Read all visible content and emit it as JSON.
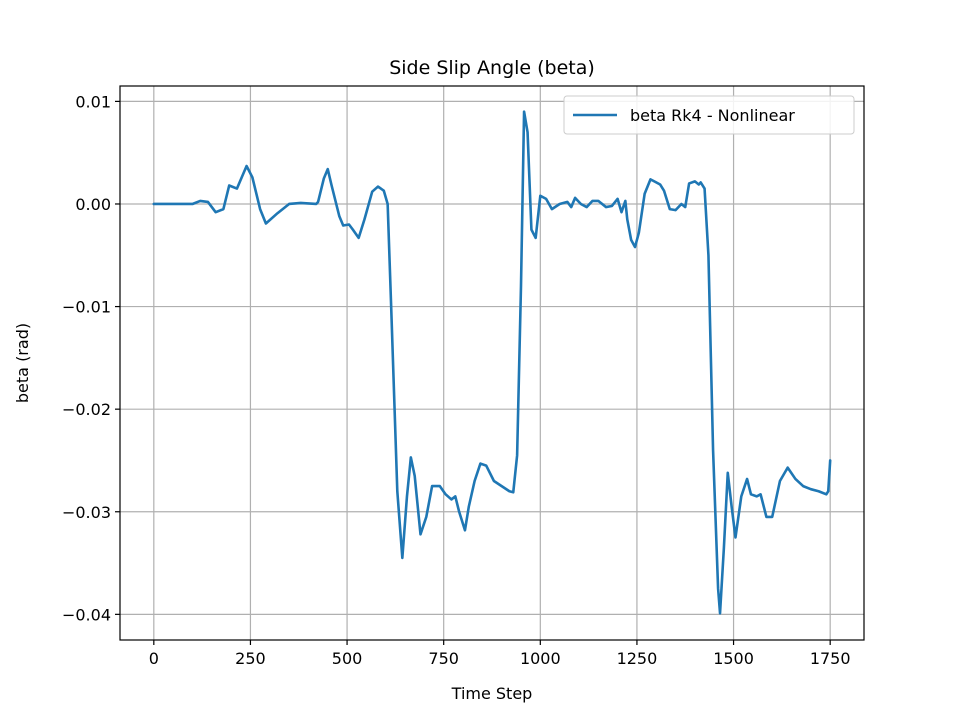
{
  "chart_data": {
    "type": "line",
    "title": "Side Slip Angle (beta)",
    "xlabel": "Time Step",
    "ylabel": "beta (rad)",
    "xlim": [
      -87.5,
      1837.5
    ],
    "ylim": [
      -0.0425,
      0.0115
    ],
    "xticks": [
      0,
      250,
      500,
      750,
      1000,
      1250,
      1500,
      1750
    ],
    "xtick_labels": [
      "0",
      "250",
      "500",
      "750",
      "1000",
      "1250",
      "1500",
      "1750"
    ],
    "yticks": [
      0.01,
      0.0,
      -0.01,
      -0.02,
      -0.03,
      -0.04
    ],
    "ytick_labels": [
      "0.01",
      "0.00",
      "−0.01",
      "−0.02",
      "−0.03",
      "−0.04"
    ],
    "grid": true,
    "legend_position": "upper right",
    "series": [
      {
        "name": "beta Rk4 - Nonlinear",
        "color": "#1f77b4",
        "x": [
          0,
          50,
          100,
          120,
          140,
          160,
          180,
          195,
          215,
          240,
          255,
          275,
          290,
          320,
          350,
          380,
          420,
          425,
          440,
          450,
          460,
          480,
          490,
          505,
          515,
          530,
          545,
          565,
          580,
          595,
          605,
          615,
          630,
          643,
          655,
          665,
          675,
          690,
          705,
          720,
          740,
          755,
          770,
          780,
          790,
          805,
          815,
          830,
          845,
          860,
          880,
          900,
          920,
          930,
          940,
          950,
          958,
          967,
          977,
          988,
          1000,
          1015,
          1030,
          1050,
          1070,
          1080,
          1090,
          1105,
          1120,
          1135,
          1150,
          1170,
          1185,
          1200,
          1210,
          1220,
          1225,
          1235,
          1245,
          1255,
          1270,
          1285,
          1295,
          1310,
          1320,
          1335,
          1350,
          1365,
          1375,
          1385,
          1400,
          1410,
          1415,
          1425,
          1435,
          1447,
          1460,
          1465,
          1475,
          1485,
          1495,
          1505,
          1520,
          1535,
          1545,
          1560,
          1570,
          1585,
          1600,
          1620,
          1640,
          1660,
          1680,
          1700,
          1720,
          1740,
          1745,
          1750
        ],
        "y": [
          0.0,
          0.0,
          0.0,
          0.0003,
          0.0002,
          -0.0008,
          -0.0005,
          0.0018,
          0.0015,
          0.0037,
          0.0026,
          -0.0005,
          -0.0019,
          -0.0009,
          0.0,
          0.0001,
          0.0,
          0.0002,
          0.0025,
          0.0034,
          0.0018,
          -0.0012,
          -0.0021,
          -0.002,
          -0.0025,
          -0.0033,
          -0.0015,
          0.0012,
          0.0017,
          0.0013,
          0.0,
          -0.011,
          -0.028,
          -0.0345,
          -0.0285,
          -0.0247,
          -0.0265,
          -0.0322,
          -0.0305,
          -0.0275,
          -0.0275,
          -0.0283,
          -0.0288,
          -0.0285,
          -0.03,
          -0.0318,
          -0.0295,
          -0.027,
          -0.0253,
          -0.0255,
          -0.027,
          -0.0275,
          -0.028,
          -0.0281,
          -0.0245,
          -0.008,
          0.009,
          0.007,
          -0.0025,
          -0.0033,
          0.0008,
          0.0005,
          -0.0005,
          0.0,
          0.0002,
          -0.0003,
          0.0006,
          0.0,
          -0.0003,
          0.0003,
          0.0003,
          -0.0003,
          -0.0002,
          0.0005,
          -0.0008,
          0.0003,
          -0.0015,
          -0.0035,
          -0.0042,
          -0.0028,
          0.001,
          0.0024,
          0.0022,
          0.0019,
          0.0013,
          -0.0005,
          -0.0006,
          0.0,
          -0.0003,
          0.002,
          0.0022,
          0.0019,
          0.0021,
          0.0015,
          -0.005,
          -0.024,
          -0.0375,
          -0.0399,
          -0.0335,
          -0.0262,
          -0.0295,
          -0.0325,
          -0.0285,
          -0.0268,
          -0.0283,
          -0.0285,
          -0.0283,
          -0.0305,
          -0.0305,
          -0.027,
          -0.0257,
          -0.0268,
          -0.0275,
          -0.0278,
          -0.028,
          -0.0283,
          -0.028,
          -0.025
        ]
      }
    ]
  }
}
